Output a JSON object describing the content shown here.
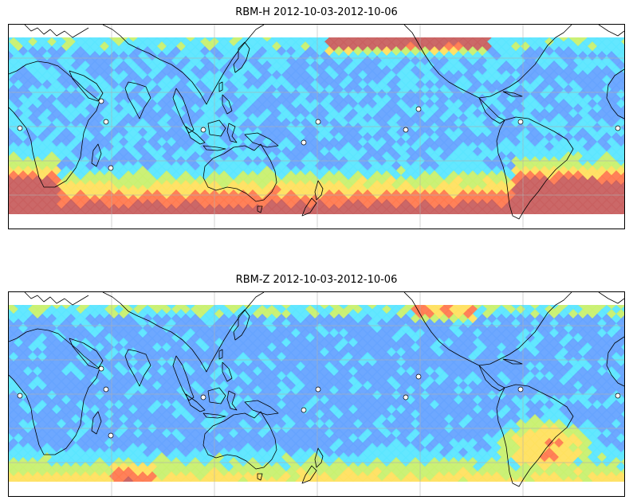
{
  "panels": [
    {
      "id": "rbm-h",
      "title": "RBM-H 2012-10-03-2012-10-06",
      "variant": "H"
    },
    {
      "id": "rbm-z",
      "title": "RBM-Z 2012-10-03-2012-10-06",
      "variant": "Z"
    }
  ],
  "colors": {
    "low": "#6e6eff",
    "mid_low": "#66a3ff",
    "mid": "#5ce6ff",
    "mid_high": "#c8f070",
    "high": "#ffe060",
    "very_high": "#ff7a50",
    "max": "#c86060",
    "grid": "#b0b0b0",
    "coast": "#000000"
  },
  "map": {
    "projection": "equirectangular",
    "grid_visible": true,
    "coastlines_visible": true
  }
}
